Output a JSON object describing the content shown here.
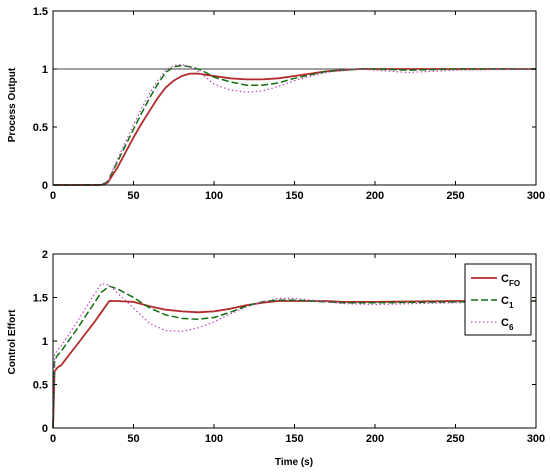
{
  "colors": {
    "frame": "#000000",
    "reference": "#000000",
    "series": [
      "#b22a2a",
      "#0f6e0f",
      "#c040c0"
    ]
  },
  "chart_data": [
    {
      "type": "line",
      "title": "",
      "xlabel": "",
      "ylabel": "Process Output",
      "xlim": [
        0,
        300
      ],
      "ylim": [
        0,
        1.5
      ],
      "xticks": [
        "0",
        "50",
        "100",
        "150",
        "200",
        "250",
        "300"
      ],
      "yticks": [
        "0",
        "0.5",
        "1",
        "1.5"
      ],
      "grid": false,
      "reference_line": 1,
      "series": [
        {
          "x": [
            0,
            30,
            34,
            40,
            45,
            50,
            55,
            60,
            65,
            70,
            75,
            80,
            85,
            90,
            95,
            100,
            110,
            120,
            130,
            140,
            150,
            160,
            170,
            180,
            190,
            200,
            220,
            250,
            300
          ],
          "y": [
            0,
            0,
            0.02,
            0.15,
            0.28,
            0.41,
            0.53,
            0.64,
            0.75,
            0.84,
            0.9,
            0.94,
            0.96,
            0.96,
            0.95,
            0.94,
            0.92,
            0.91,
            0.91,
            0.92,
            0.94,
            0.96,
            0.98,
            0.99,
            1.0,
            1.0,
            1.0,
            1.0,
            1.0
          ]
        },
        {
          "x": [
            0,
            30,
            34,
            40,
            45,
            50,
            55,
            60,
            65,
            70,
            75,
            80,
            85,
            90,
            95,
            100,
            110,
            120,
            130,
            140,
            150,
            160,
            170,
            180,
            190,
            200,
            220,
            250,
            300
          ],
          "y": [
            0,
            0,
            0.03,
            0.2,
            0.34,
            0.48,
            0.62,
            0.75,
            0.87,
            0.97,
            1.02,
            1.03,
            1.02,
            1.0,
            0.97,
            0.93,
            0.89,
            0.86,
            0.86,
            0.88,
            0.92,
            0.95,
            0.98,
            0.99,
            1.0,
            1.0,
            0.99,
            1.0,
            1.0
          ]
        },
        {
          "x": [
            0,
            30,
            34,
            40,
            45,
            50,
            55,
            60,
            65,
            70,
            75,
            80,
            85,
            90,
            95,
            100,
            110,
            120,
            130,
            140,
            150,
            160,
            170,
            180,
            190,
            200,
            220,
            250,
            300
          ],
          "y": [
            0,
            0,
            0.03,
            0.22,
            0.37,
            0.52,
            0.66,
            0.79,
            0.9,
            0.99,
            1.03,
            1.04,
            1.02,
            0.98,
            0.93,
            0.87,
            0.82,
            0.8,
            0.81,
            0.85,
            0.9,
            0.94,
            0.97,
            0.99,
            1.0,
            0.99,
            0.97,
            0.99,
            1.0
          ]
        }
      ]
    },
    {
      "type": "line",
      "title": "",
      "xlabel": "Time (s)",
      "ylabel": "Control Effort",
      "xlim": [
        0,
        300
      ],
      "ylim": [
        0,
        2
      ],
      "xticks": [
        "0",
        "50",
        "100",
        "150",
        "200",
        "250",
        "300"
      ],
      "yticks": [
        "0",
        "0.5",
        "1",
        "1.5",
        "2"
      ],
      "grid": false,
      "legend": {
        "placement": "right",
        "entries": [
          {
            "base": "C",
            "sub": "FO"
          },
          {
            "base": "C",
            "sub": "1"
          },
          {
            "base": "C",
            "sub": "6"
          }
        ]
      },
      "series": [
        {
          "x": [
            0,
            1,
            3,
            5,
            10,
            15,
            20,
            25,
            30,
            35,
            40,
            50,
            60,
            70,
            80,
            90,
            100,
            110,
            120,
            130,
            140,
            150,
            160,
            170,
            180,
            200,
            250,
            300
          ],
          "y": [
            0,
            0.65,
            0.7,
            0.72,
            0.84,
            0.96,
            1.08,
            1.2,
            1.33,
            1.46,
            1.46,
            1.45,
            1.4,
            1.36,
            1.34,
            1.33,
            1.34,
            1.37,
            1.41,
            1.44,
            1.46,
            1.46,
            1.46,
            1.46,
            1.45,
            1.45,
            1.46,
            1.46
          ]
        },
        {
          "x": [
            0,
            1,
            3,
            5,
            10,
            15,
            20,
            25,
            30,
            35,
            40,
            50,
            60,
            70,
            80,
            90,
            100,
            110,
            120,
            130,
            140,
            150,
            160,
            170,
            180,
            200,
            250,
            300
          ],
          "y": [
            0,
            0.78,
            0.84,
            0.88,
            1.01,
            1.14,
            1.28,
            1.42,
            1.56,
            1.63,
            1.6,
            1.5,
            1.38,
            1.3,
            1.26,
            1.25,
            1.27,
            1.33,
            1.4,
            1.45,
            1.47,
            1.47,
            1.46,
            1.45,
            1.44,
            1.44,
            1.45,
            1.46
          ]
        },
        {
          "x": [
            0,
            1,
            3,
            5,
            10,
            15,
            20,
            25,
            30,
            35,
            40,
            50,
            60,
            70,
            80,
            90,
            100,
            110,
            120,
            130,
            140,
            150,
            160,
            170,
            180,
            200,
            250,
            300
          ],
          "y": [
            0,
            0.85,
            0.9,
            0.94,
            1.08,
            1.22,
            1.37,
            1.52,
            1.66,
            1.64,
            1.55,
            1.38,
            1.2,
            1.12,
            1.11,
            1.15,
            1.22,
            1.31,
            1.39,
            1.45,
            1.49,
            1.49,
            1.47,
            1.45,
            1.43,
            1.42,
            1.44,
            1.46
          ]
        }
      ]
    }
  ]
}
